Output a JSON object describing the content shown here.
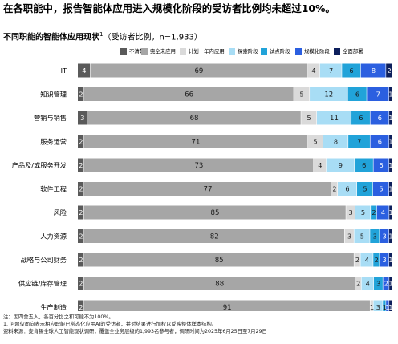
{
  "headline": "在各职能中，报告智能体应用进入规模化阶段的受访者比例均未超过10%。",
  "subtitle": {
    "title": "不同职能的智能体应用现状",
    "superscript": "1",
    "note": "（受访者比例，n=1,933）"
  },
  "legend": [
    {
      "label": "不清楚",
      "color": "#5a5a5a"
    },
    {
      "label": "完全未应用",
      "color": "#a6a6a6"
    },
    {
      "label": "计划一年内应用",
      "color": "#dadada"
    },
    {
      "label": "探索阶段",
      "color": "#a8ddf5"
    },
    {
      "label": "试点阶段",
      "color": "#21a3d9"
    },
    {
      "label": "规模化阶段",
      "color": "#2b5fe0"
    },
    {
      "label": "全面部署",
      "color": "#0d1f5c"
    }
  ],
  "chart_data": {
    "type": "bar",
    "orientation": "horizontal",
    "stacked": true,
    "unit": "%",
    "categories": [
      "IT",
      "知识管理",
      "营销与销售",
      "服务运营",
      "产品及/或服务开发",
      "软件工程",
      "风险",
      "人力资源",
      "战略与公司财务",
      "供应链/库存管理",
      "生产制造"
    ],
    "series": [
      {
        "name": "不清楚",
        "values": [
          4,
          2,
          3,
          2,
          2,
          2,
          2,
          2,
          2,
          2,
          2
        ]
      },
      {
        "name": "完全未应用",
        "values": [
          69,
          66,
          68,
          71,
          73,
          77,
          85,
          82,
          85,
          88,
          91
        ]
      },
      {
        "name": "计划一年内应用",
        "values": [
          4,
          5,
          5,
          5,
          4,
          2,
          3,
          3,
          2,
          2,
          1
        ]
      },
      {
        "name": "探索阶段",
        "values": [
          7,
          12,
          11,
          8,
          9,
          6,
          5,
          5,
          4,
          4,
          3
        ]
      },
      {
        "name": "试点阶段",
        "values": [
          6,
          6,
          6,
          7,
          6,
          5,
          2,
          3,
          2,
          3,
          1
        ]
      },
      {
        "name": "规模化阶段",
        "values": [
          8,
          7,
          6,
          6,
          5,
          5,
          4,
          3,
          3,
          2,
          1
        ]
      },
      {
        "name": "全面部署",
        "values": [
          2,
          1,
          1,
          1,
          1,
          1,
          1,
          1,
          1,
          1,
          1
        ]
      }
    ],
    "xlim": [
      0,
      100
    ]
  },
  "footnotes": [
    "注：因四舍五入，各百分比之和可能不为100%。",
    "1.   问题仅面向表示相应职能已常态化应用AI的受访者，并对结果进行加权以反映整体样本结构。",
    "资料来源：麦肯锡全球人工智能现状调研，覆盖全业务层级的1,993名参与者，调研时间为2025年6月25日至7月29日"
  ]
}
